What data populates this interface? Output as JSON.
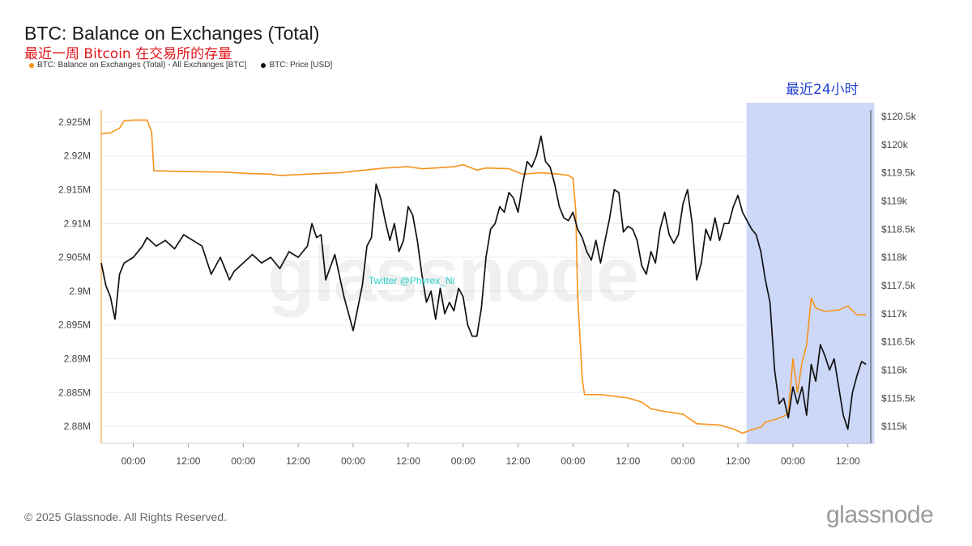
{
  "header": {
    "title": "BTC: Balance on Exchanges (Total)",
    "subtitle": "最近一周 Bitcoin 在交易所的存量"
  },
  "legend": [
    {
      "label": "BTC: Balance on Exchanges (Total) - All Exchanges [BTC]",
      "color": "#f7931a"
    },
    {
      "label": "BTC: Price [USD]",
      "color": "#111111"
    }
  ],
  "annotation": {
    "highlight_label": "最近24小时",
    "highlight_color": "#cdd8f8",
    "twitter": "Twitter @Phyrex_Ni"
  },
  "footer": {
    "copyright": "© 2025 Glassnode. All Rights Reserved.",
    "logo": "glassnode",
    "watermark": "glassnode"
  },
  "chart_data": {
    "type": "line",
    "x_ticks": [
      "00:00",
      "12:00",
      "00:00",
      "12:00",
      "00:00",
      "12:00",
      "00:00",
      "12:00",
      "00:00",
      "12:00",
      "00:00",
      "12:00",
      "00:00",
      "12:00"
    ],
    "x_range_hours": [
      -7,
      161
    ],
    "y_left": {
      "range": [
        2.8775,
        2.9275
      ],
      "ticks": [
        2.88,
        2.885,
        2.89,
        2.895,
        2.9,
        2.905,
        2.91,
        2.915,
        2.92,
        2.925
      ],
      "tick_labels": [
        "2.88M",
        "2.885M",
        "2.89M",
        "2.895M",
        "2.9M",
        "2.905M",
        "2.91M",
        "2.915M",
        "2.92M",
        "2.925M"
      ]
    },
    "y_right": {
      "range": [
        114700,
        120700
      ],
      "ticks": [
        115000,
        115500,
        116000,
        116500,
        117000,
        117500,
        118000,
        118500,
        119000,
        119500,
        120000,
        120500
      ],
      "tick_labels": [
        "$115k",
        "$115.5k",
        "$116k",
        "$116.5k",
        "$117k",
        "$117.5k",
        "$118k",
        "$118.5k",
        "$119k",
        "$119.5k",
        "$120k",
        "$120.5k"
      ]
    },
    "highlight_range_hours": [
      136,
      160
    ],
    "series": [
      {
        "name": "BTC: Balance on Exchanges (Total) - All Exchanges [BTC]",
        "axis": "left",
        "color": "#f7931a",
        "points": [
          [
            -7,
            2.9233
          ],
          [
            -5,
            2.9234
          ],
          [
            -3,
            2.9241
          ],
          [
            -2,
            2.9252
          ],
          [
            0,
            2.9253
          ],
          [
            3,
            2.9253
          ],
          [
            4,
            2.9235
          ],
          [
            4.5,
            2.9178
          ],
          [
            10,
            2.9177
          ],
          [
            20,
            2.9176
          ],
          [
            25,
            2.9174
          ],
          [
            30,
            2.9173
          ],
          [
            32,
            2.9171
          ],
          [
            38,
            2.9173
          ],
          [
            45,
            2.9175
          ],
          [
            52,
            2.918
          ],
          [
            55,
            2.9182
          ],
          [
            60,
            2.9184
          ],
          [
            63,
            2.9181
          ],
          [
            66,
            2.9182
          ],
          [
            70,
            2.9184
          ],
          [
            72,
            2.9187
          ],
          [
            75,
            2.9179
          ],
          [
            77,
            2.9182
          ],
          [
            82,
            2.9181
          ],
          [
            85,
            2.9173
          ],
          [
            89,
            2.9175
          ],
          [
            93,
            2.9173
          ],
          [
            95,
            2.9171
          ],
          [
            96,
            2.9167
          ],
          [
            96.6,
            2.912
          ],
          [
            97,
            2.8995
          ],
          [
            98,
            2.887
          ],
          [
            98.5,
            2.8847
          ],
          [
            102,
            2.8847
          ],
          [
            108,
            2.8842
          ],
          [
            111,
            2.8836
          ],
          [
            113,
            2.8826
          ],
          [
            116,
            2.8822
          ],
          [
            120,
            2.8818
          ],
          [
            123,
            2.8804
          ],
          [
            128,
            2.8802
          ],
          [
            131,
            2.8796
          ],
          [
            133,
            2.879
          ],
          [
            135,
            2.8795
          ],
          [
            137,
            2.8799
          ],
          [
            138,
            2.8806
          ],
          [
            140,
            2.881
          ],
          [
            142,
            2.8815
          ],
          [
            143,
            2.882
          ],
          [
            144,
            2.89
          ],
          [
            145,
            2.885
          ],
          [
            146,
            2.8895
          ],
          [
            147,
            2.892
          ],
          [
            148,
            2.899
          ],
          [
            149,
            2.8975
          ],
          [
            151,
            2.897
          ],
          [
            154,
            2.8972
          ],
          [
            156,
            2.8978
          ],
          [
            158,
            2.8965
          ],
          [
            160,
            2.8965
          ]
        ]
      },
      {
        "name": "BTC: Price [USD]",
        "axis": "right",
        "color": "#111111",
        "points": [
          [
            -7,
            117900
          ],
          [
            -6,
            117500
          ],
          [
            -5,
            117300
          ],
          [
            -4,
            116900
          ],
          [
            -3,
            117700
          ],
          [
            -2,
            117900
          ],
          [
            0,
            118000
          ],
          [
            2,
            118200
          ],
          [
            3,
            118350
          ],
          [
            5,
            118200
          ],
          [
            7,
            118300
          ],
          [
            9,
            118150
          ],
          [
            11,
            118400
          ],
          [
            13,
            118300
          ],
          [
            15,
            118200
          ],
          [
            17,
            117700
          ],
          [
            19,
            118000
          ],
          [
            20,
            117800
          ],
          [
            21,
            117600
          ],
          [
            22,
            117750
          ],
          [
            24,
            117900
          ],
          [
            26,
            118050
          ],
          [
            28,
            117900
          ],
          [
            30,
            118000
          ],
          [
            32,
            117800
          ],
          [
            34,
            118100
          ],
          [
            36,
            118000
          ],
          [
            38,
            118200
          ],
          [
            39,
            118600
          ],
          [
            40,
            118350
          ],
          [
            41,
            118400
          ],
          [
            42,
            117600
          ],
          [
            44,
            118050
          ],
          [
            46,
            117300
          ],
          [
            48,
            116700
          ],
          [
            49,
            117100
          ],
          [
            50,
            117500
          ],
          [
            51,
            118200
          ],
          [
            52,
            118350
          ],
          [
            53,
            119300
          ],
          [
            54,
            119050
          ],
          [
            55,
            118650
          ],
          [
            56,
            118300
          ],
          [
            57,
            118600
          ],
          [
            58,
            118100
          ],
          [
            59,
            118300
          ],
          [
            60,
            118900
          ],
          [
            61,
            118750
          ],
          [
            62,
            118300
          ],
          [
            63,
            117700
          ],
          [
            64,
            117200
          ],
          [
            65,
            117400
          ],
          [
            66,
            116900
          ],
          [
            67,
            117450
          ],
          [
            68,
            117000
          ],
          [
            69,
            117200
          ],
          [
            70,
            117050
          ],
          [
            71,
            117450
          ],
          [
            72,
            117300
          ],
          [
            73,
            116800
          ],
          [
            74,
            116600
          ],
          [
            75,
            116600
          ],
          [
            76,
            117100
          ],
          [
            77,
            118000
          ],
          [
            78,
            118500
          ],
          [
            79,
            118600
          ],
          [
            80,
            118900
          ],
          [
            81,
            118800
          ],
          [
            82,
            119150
          ],
          [
            83,
            119050
          ],
          [
            84,
            118800
          ],
          [
            85,
            119300
          ],
          [
            86,
            119700
          ],
          [
            87,
            119600
          ],
          [
            88,
            119800
          ],
          [
            89,
            120150
          ],
          [
            90,
            119700
          ],
          [
            91,
            119600
          ],
          [
            92,
            119300
          ],
          [
            93,
            118900
          ],
          [
            94,
            118700
          ],
          [
            95,
            118650
          ],
          [
            96,
            118800
          ],
          [
            97,
            118500
          ],
          [
            98,
            118350
          ],
          [
            99,
            118100
          ],
          [
            100,
            117950
          ],
          [
            101,
            118300
          ],
          [
            102,
            117900
          ],
          [
            103,
            118300
          ],
          [
            104,
            118700
          ],
          [
            105,
            119200
          ],
          [
            106,
            119150
          ],
          [
            107,
            118450
          ],
          [
            108,
            118550
          ],
          [
            109,
            118500
          ],
          [
            110,
            118300
          ],
          [
            111,
            117850
          ],
          [
            112,
            117700
          ],
          [
            113,
            118100
          ],
          [
            114,
            117900
          ],
          [
            115,
            118500
          ],
          [
            116,
            118800
          ],
          [
            117,
            118400
          ],
          [
            118,
            118250
          ],
          [
            119,
            118400
          ],
          [
            120,
            118950
          ],
          [
            121,
            119200
          ],
          [
            122,
            118600
          ],
          [
            123,
            117600
          ],
          [
            124,
            117900
          ],
          [
            125,
            118500
          ],
          [
            126,
            118300
          ],
          [
            127,
            118700
          ],
          [
            128,
            118300
          ],
          [
            129,
            118600
          ],
          [
            130,
            118600
          ],
          [
            131,
            118900
          ],
          [
            132,
            119100
          ],
          [
            133,
            118800
          ],
          [
            134,
            118650
          ],
          [
            135,
            118500
          ],
          [
            136,
            118400
          ],
          [
            137,
            118100
          ],
          [
            138,
            117600
          ],
          [
            139,
            117200
          ],
          [
            140,
            116000
          ],
          [
            141,
            115400
          ],
          [
            142,
            115500
          ],
          [
            143,
            115150
          ],
          [
            144,
            115700
          ],
          [
            145,
            115400
          ],
          [
            146,
            115700
          ],
          [
            147,
            115200
          ],
          [
            148,
            116100
          ],
          [
            149,
            115800
          ],
          [
            150,
            116450
          ],
          [
            151,
            116250
          ],
          [
            152,
            116000
          ],
          [
            153,
            116200
          ],
          [
            154,
            115700
          ],
          [
            155,
            115200
          ],
          [
            156,
            114950
          ],
          [
            157,
            115600
          ],
          [
            158,
            115900
          ],
          [
            159,
            116150
          ],
          [
            160,
            116100
          ]
        ]
      }
    ]
  }
}
